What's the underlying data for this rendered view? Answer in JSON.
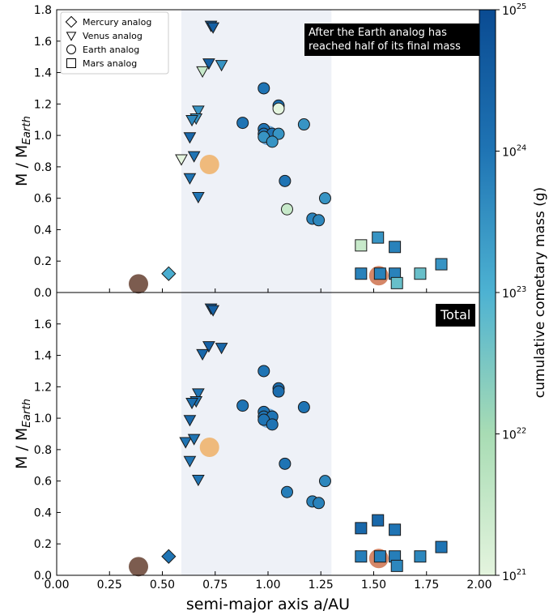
{
  "chart_data": {
    "type": "scatter",
    "xlabel": "semi-major axis a/AU",
    "ylabel": "M / M_Earth",
    "xlim": [
      0,
      2.0
    ],
    "xticks": [
      {
        "value": 0,
        "label": "0.00"
      },
      0.25,
      {
        "value": 0.5,
        "label": "0.50"
      },
      0.75,
      {
        "value": 1.0,
        "label": "1.00"
      },
      1.25,
      {
        "value": 1.5,
        "label": "1.50"
      },
      1.75,
      {
        "value": 2.0,
        "label": "2.00"
      }
    ],
    "shade": [
      0.59,
      1.3
    ],
    "shade_color": "#eef1f7",
    "planets": {
      "x": [
        0.387,
        0.723,
        1.0,
        1.524
      ],
      "values": [
        0.055,
        0.815,
        1.0,
        0.107
      ],
      "colors": [
        "#6e4a3c",
        "#eeb46e",
        "#5f9fd0",
        "#d07a58"
      ]
    },
    "colorbar": {
      "label": "cumulative cometary mass (g)",
      "log": true,
      "lim": [
        1e+21,
        1e+25
      ],
      "ticks": [
        {
          "value": 1e+21,
          "label": "10^21"
        },
        {
          "value": 1e+22,
          "label": "10^22"
        },
        {
          "value": 1e+23,
          "label": "10^23"
        },
        {
          "value": 1e+24,
          "label": "10^24"
        },
        {
          "value": 1e+25,
          "label": "10^25"
        }
      ],
      "colors": [
        "#e4f4de",
        "#a8dcb4",
        "#4db2d2",
        "#1f74b4",
        "#0a4b92"
      ]
    },
    "panels": [
      {
        "annotation": "After the Earth analog has reached half of its final mass",
        "ylim": [
          0,
          1.8
        ],
        "yticks": [
          {
            "value": 0,
            "label": "0.0"
          },
          0.2,
          0.4,
          0.6,
          0.8,
          {
            "value": 1.0,
            "label": "1.0"
          },
          1.2,
          1.4,
          1.6,
          1.8
        ],
        "series": [
          {
            "name": "Mercury analog",
            "marker": "diamond",
            "x": [
              0.53
            ],
            "values": [
              0.12
            ],
            "mass": [
              1.2e+23
            ]
          },
          {
            "name": "Venus analog",
            "marker": "triangle",
            "x": [
              0.73,
              0.74,
              0.72,
              0.78,
              0.69,
              0.67,
              0.66,
              0.64,
              0.63,
              0.59,
              0.65,
              0.63,
              0.67
            ],
            "values": [
              1.7,
              1.69,
              1.46,
              1.45,
              1.41,
              1.16,
              1.11,
              1.1,
              0.99,
              0.85,
              0.87,
              0.73,
              0.61
            ],
            "mass": [
              3e+24,
              3e+24,
              3e+24,
              3e+23,
              3e+21,
              3e+23,
              3e+23,
              5e+23,
              2e+24,
              1e+21,
              1e+24,
              1e+24,
              1e+24
            ]
          },
          {
            "name": "Earth analog",
            "marker": "circle",
            "x": [
              0.98,
              0.88,
              1.05,
              1.05,
              0.98,
              0.98,
              1.02,
              1.05,
              0.98,
              1.02,
              1.17,
              1.08,
              1.09,
              1.27,
              1.21,
              1.24
            ],
            "values": [
              1.3,
              1.08,
              1.19,
              1.17,
              1.04,
              1.01,
              1.01,
              1.01,
              0.99,
              0.96,
              1.07,
              0.71,
              0.53,
              0.6,
              0.47,
              0.46
            ],
            "mass": [
              1e+24,
              1e+24,
              1.5e+24,
              1e+21,
              1e+24,
              1e+24,
              1e+24,
              3e+23,
              3e+23,
              3e+23,
              3e+23,
              1e+24,
              3e+21,
              3e+23,
              6e+23,
              5e+23
            ]
          },
          {
            "name": "Mars analog",
            "marker": "square",
            "x": [
              1.44,
              1.52,
              1.6,
              1.82,
              1.44,
              1.53,
              1.6,
              1.72,
              1.61
            ],
            "values": [
              0.3,
              0.35,
              0.29,
              0.18,
              0.12,
              0.12,
              0.12,
              0.12,
              0.06
            ],
            "mass": [
              3e+21,
              3e+23,
              6e+23,
              3e+23,
              6e+23,
              6e+23,
              6e+23,
              5e+22,
              5e+22
            ]
          }
        ]
      },
      {
        "annotation": "Total",
        "ylim": [
          0,
          1.8
        ],
        "yticks": [
          {
            "value": 0,
            "label": "0.0"
          },
          0.2,
          0.4,
          0.6,
          0.8,
          {
            "value": 1.0,
            "label": "1.0"
          },
          1.2,
          1.4,
          1.6
        ],
        "series": [
          {
            "marker": "diamond",
            "x": [
              0.53
            ],
            "values": [
              0.12
            ],
            "mass": [
              1e+24
            ]
          },
          {
            "marker": "triangle",
            "x": [
              0.73,
              0.74,
              0.72,
              0.78,
              0.69,
              0.67,
              0.66,
              0.64,
              0.63,
              0.61,
              0.65,
              0.63,
              0.67
            ],
            "values": [
              1.7,
              1.69,
              1.46,
              1.45,
              1.41,
              1.16,
              1.11,
              1.1,
              0.99,
              0.85,
              0.87,
              0.73,
              0.61
            ],
            "mass": [
              3e+24,
              3e+24,
              3e+24,
              2e+24,
              2e+24,
              1e+24,
              1e+24,
              1.5e+24,
              2e+24,
              1e+24,
              1e+24,
              1e+24,
              1e+24
            ]
          },
          {
            "marker": "circle",
            "x": [
              0.98,
              0.88,
              1.05,
              1.05,
              0.98,
              0.98,
              1.02,
              0.98,
              1.02,
              1.17,
              1.08,
              1.09,
              1.27,
              1.21,
              1.24
            ],
            "values": [
              1.3,
              1.08,
              1.19,
              1.17,
              1.04,
              1.01,
              1.01,
              0.99,
              0.96,
              1.07,
              0.71,
              0.53,
              0.6,
              0.47,
              0.46
            ],
            "mass": [
              1e+24,
              1e+24,
              1.5e+24,
              1.5e+24,
              1e+24,
              1e+24,
              1e+24,
              1e+24,
              1e+24,
              1e+24,
              1e+24,
              7e+23,
              5e+23,
              6e+23,
              6e+23
            ]
          },
          {
            "marker": "square",
            "x": [
              1.44,
              1.52,
              1.6,
              1.82,
              1.44,
              1.53,
              1.6,
              1.72,
              1.61
            ],
            "values": [
              0.3,
              0.35,
              0.29,
              0.18,
              0.12,
              0.12,
              0.12,
              0.12,
              0.06
            ],
            "mass": [
              2e+24,
              2e+24,
              1e+24,
              1e+24,
              7e+23,
              7e+23,
              7e+23,
              5e+23,
              5e+23
            ]
          }
        ]
      }
    ]
  }
}
